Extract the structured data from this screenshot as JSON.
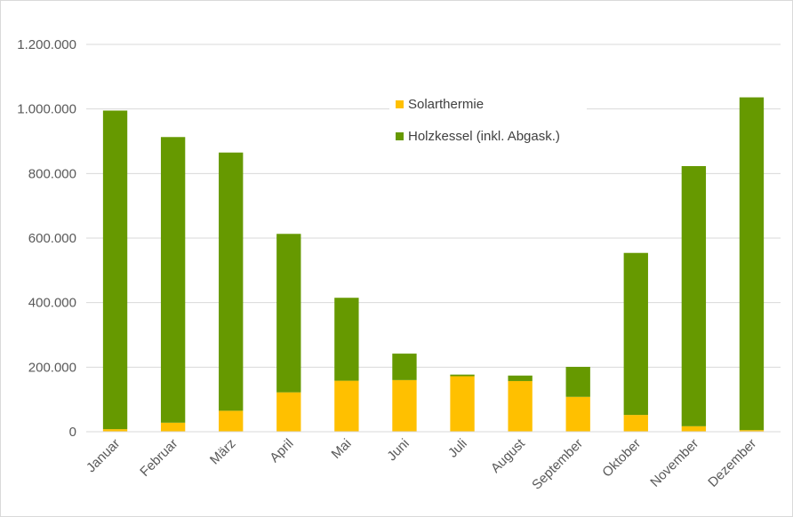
{
  "chart_data": {
    "type": "bar",
    "stacked": true,
    "categories": [
      "Januar",
      "Februar",
      "März",
      "April",
      "Mai",
      "Juni",
      "Juli",
      "August",
      "September",
      "Oktober",
      "November",
      "Dezember"
    ],
    "series": [
      {
        "name": "Solarthermie",
        "color": "#ffc000",
        "values": [
          8000,
          28000,
          65000,
          122000,
          158000,
          160000,
          172000,
          157000,
          108000,
          52000,
          17000,
          5000
        ]
      },
      {
        "name": "Holzkessel (inkl. Abgask.)",
        "color": "#669900",
        "values": [
          987000,
          885000,
          800000,
          491000,
          257000,
          82000,
          5000,
          17000,
          93000,
          502000,
          806000,
          1031000
        ]
      }
    ],
    "yticks": [
      "0",
      "200.000",
      "400.000",
      "600.000",
      "800.000",
      "1.000.000",
      "1.200.000"
    ],
    "ylim": [
      0,
      1200000
    ],
    "grid": true,
    "legend_position": "top-center-right"
  }
}
